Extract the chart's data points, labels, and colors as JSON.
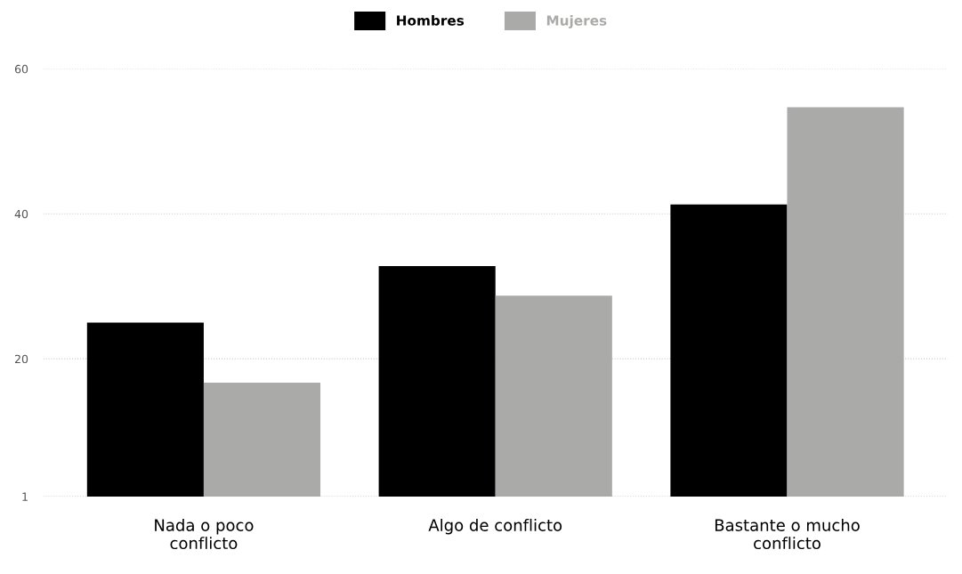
{
  "chart_data": {
    "type": "bar",
    "categories": [
      "Nada o poco\nconflicto",
      "Algo de conflicto",
      "Bastante o mucho\nconflicto"
    ],
    "series": [
      {
        "name": "Hombres",
        "color": "#000000",
        "values": [
          25.0,
          32.8,
          41.3
        ]
      },
      {
        "name": "Mujeres",
        "color": "#aaaaa9",
        "values": [
          16.7,
          28.7,
          54.7
        ]
      }
    ],
    "ylim": [
      1,
      60
    ],
    "yticks": [
      1,
      20,
      40,
      60
    ],
    "grid": "y",
    "legend": "top"
  }
}
